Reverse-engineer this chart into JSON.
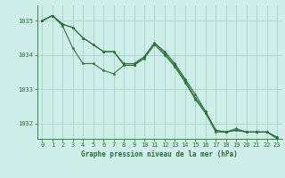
{
  "xlabel": "Graphe pression niveau de la mer (hPa)",
  "bg_color": "#ceeee8",
  "grid_color": "#a0ccc0",
  "line_color": "#2d6b3c",
  "marker_color": "#2d6b3c",
  "ylim": [
    1031.55,
    1035.45
  ],
  "xlim": [
    -0.5,
    23.5
  ],
  "yticks": [
    1032,
    1033,
    1034,
    1035
  ],
  "xticks": [
    0,
    1,
    2,
    3,
    4,
    5,
    6,
    7,
    8,
    9,
    10,
    11,
    12,
    13,
    14,
    15,
    16,
    17,
    18,
    19,
    20,
    21,
    22,
    23
  ],
  "series": [
    [
      1035.0,
      1035.15,
      1034.85,
      1034.2,
      1033.75,
      1033.75,
      1033.55,
      1033.45,
      1033.7,
      1033.7,
      1033.95,
      1034.35,
      1034.1,
      1033.75,
      1033.3,
      1032.85,
      1032.35,
      1031.8,
      1031.75,
      1031.8,
      1031.75,
      1031.75,
      1031.75,
      1031.6
    ],
    [
      1035.0,
      1035.15,
      1034.85,
      1034.75,
      1034.55,
      1034.35,
      1034.1,
      1034.1,
      1033.75,
      1033.75,
      1033.95,
      1034.35,
      1034.05,
      1033.7,
      1033.25,
      1032.75,
      1032.35,
      1031.8,
      1031.75,
      1031.8,
      1031.75,
      1031.75,
      1031.75,
      1031.6
    ],
    [
      1035.0,
      1035.15,
      1034.85,
      1034.75,
      1034.55,
      1034.35,
      1034.1,
      1034.1,
      1033.75,
      1033.75,
      1033.95,
      1034.35,
      1034.05,
      1033.7,
      1033.25,
      1032.75,
      1032.35,
      1031.8,
      1031.75,
      1031.8,
      1031.75,
      1031.75,
      1031.75,
      1031.6
    ]
  ]
}
